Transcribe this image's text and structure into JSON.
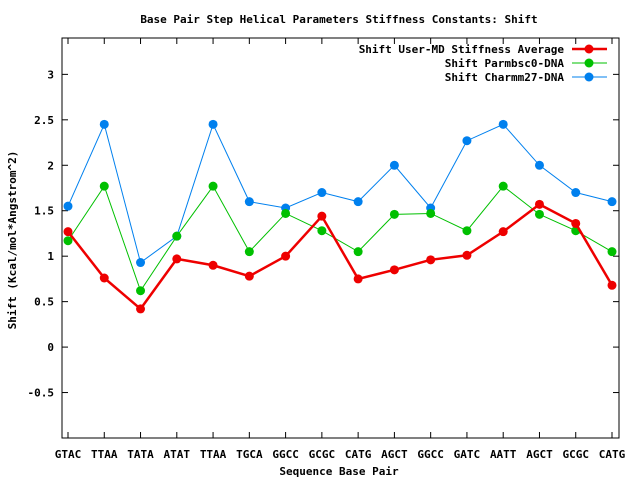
{
  "chart_data": {
    "type": "line",
    "title": "Base Pair Step Helical Parameters Stiffness Constants: Shift",
    "xlabel": "Sequence Base Pair",
    "ylabel": "Shift (Kcal/mol*Angstrom^2)",
    "categories": [
      "GTAC",
      "TTAA",
      "TATA",
      "ATAT",
      "TTAA",
      "TGCA",
      "GGCC",
      "GCGC",
      "CATG",
      "AGCT",
      "GGCC",
      "GATC",
      "AATT",
      "AGCT",
      "GCGC",
      "CATG"
    ],
    "ylim": [
      -1,
      3.4
    ],
    "yticks": [
      -0.5,
      0,
      0.5,
      1,
      1.5,
      2,
      2.5,
      3
    ],
    "ytick_labels": [
      "-0.5",
      "0",
      "0.5",
      "1",
      "1.5",
      "2",
      "2.5",
      "3"
    ],
    "grid": false,
    "legend_position": "top-right",
    "series": [
      {
        "name": "Shift User-MD Stiffness Average",
        "color": "#ee0000",
        "values": [
          1.27,
          0.76,
          0.42,
          0.97,
          0.9,
          0.78,
          1.0,
          1.44,
          0.75,
          0.85,
          0.96,
          1.01,
          1.27,
          1.57,
          1.36,
          0.68
        ]
      },
      {
        "name": "Shift Parmbsc0-DNA",
        "color": "#00c000",
        "values": [
          1.17,
          1.77,
          0.62,
          1.22,
          1.77,
          1.05,
          1.47,
          1.28,
          1.05,
          1.46,
          1.47,
          1.28,
          1.77,
          1.46,
          1.28,
          1.05
        ]
      },
      {
        "name": "Shift Charmm27-DNA",
        "color": "#0080ee",
        "values": [
          1.55,
          2.45,
          0.93,
          1.22,
          2.45,
          1.6,
          1.53,
          1.7,
          1.6,
          2.0,
          1.53,
          2.27,
          2.45,
          2.0,
          1.7,
          1.6
        ]
      }
    ]
  }
}
